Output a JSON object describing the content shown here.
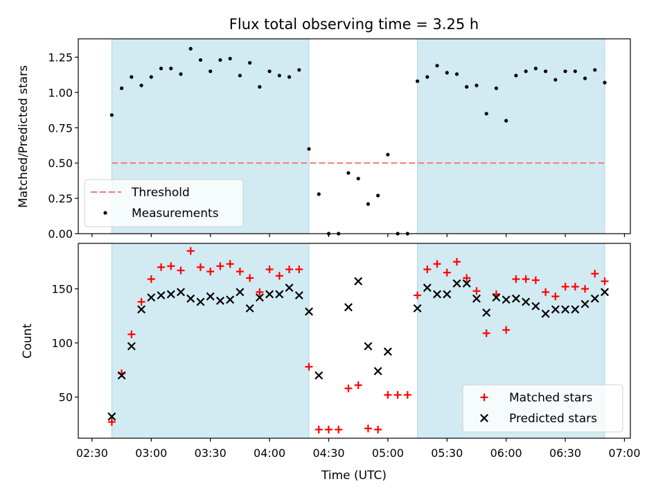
{
  "title": "Flux total observing time = 3.25 h",
  "colors": {
    "shade": "#add8e6",
    "threshold": "#f08080",
    "matched": "#ff0000",
    "predicted": "#000000",
    "measurement": "#000000"
  },
  "chart_data": [
    {
      "type": "scatter",
      "panel": "top",
      "ylabel": "Matched/Predicted stars",
      "xlabel": "",
      "ylim": [
        0,
        1.38
      ],
      "yticks": [
        0.0,
        0.25,
        0.5,
        0.75,
        1.0,
        1.25
      ],
      "ytick_labels": [
        "0.00",
        "0.25",
        "0.50",
        "0.75",
        "1.00",
        "1.25"
      ],
      "xlim_minutes": [
        143,
        423
      ],
      "threshold": 0.5,
      "shaded_intervals": [
        [
          "02:40",
          "04:20"
        ],
        [
          "05:15",
          "06:50"
        ]
      ],
      "legend": {
        "placement": "lower-left",
        "entries": [
          "Threshold",
          "Measurements"
        ]
      },
      "series": [
        {
          "name": "Measurements",
          "marker": "dot",
          "x": [
            "02:40",
            "02:45",
            "02:50",
            "02:55",
            "03:00",
            "03:05",
            "03:10",
            "03:15",
            "03:20",
            "03:25",
            "03:30",
            "03:35",
            "03:40",
            "03:45",
            "03:50",
            "03:55",
            "04:00",
            "04:05",
            "04:10",
            "04:15",
            "04:20",
            "04:25",
            "04:30",
            "04:35",
            "04:40",
            "04:45",
            "04:50",
            "04:55",
            "05:00",
            "05:05",
            "05:10",
            "05:15",
            "05:20",
            "05:25",
            "05:30",
            "05:35",
            "05:40",
            "05:45",
            "05:50",
            "05:55",
            "06:00",
            "06:05",
            "06:10",
            "06:15",
            "06:20",
            "06:25",
            "06:30",
            "06:35",
            "06:40",
            "06:45",
            "06:50"
          ],
          "values": [
            0.84,
            1.03,
            1.11,
            1.05,
            1.11,
            1.17,
            1.17,
            1.13,
            1.31,
            1.23,
            1.15,
            1.23,
            1.24,
            1.12,
            1.21,
            1.04,
            1.15,
            1.12,
            1.11,
            1.16,
            0.6,
            0.28,
            0.0,
            0.0,
            0.43,
            0.39,
            0.21,
            0.27,
            0.56,
            0.0,
            0.0,
            1.08,
            1.11,
            1.19,
            1.14,
            1.13,
            1.04,
            1.05,
            0.85,
            1.03,
            0.8,
            1.12,
            1.15,
            1.17,
            1.15,
            1.09,
            1.15,
            1.15,
            1.1,
            1.16,
            1.07
          ]
        }
      ]
    },
    {
      "type": "scatter",
      "panel": "bottom",
      "ylabel": "Count",
      "xlabel": "Time (UTC)",
      "ylim": [
        12,
        192
      ],
      "yticks": [
        50,
        100,
        150
      ],
      "ytick_labels": [
        "50",
        "100",
        "150"
      ],
      "xticks": [
        "02:30",
        "03:00",
        "03:30",
        "04:00",
        "04:30",
        "05:00",
        "05:30",
        "06:00",
        "06:30",
        "07:00"
      ],
      "xlim_minutes": [
        143,
        423
      ],
      "shaded_intervals": [
        [
          "02:40",
          "04:20"
        ],
        [
          "05:15",
          "06:50"
        ]
      ],
      "legend": {
        "placement": "lower-right",
        "entries": [
          "Matched stars",
          "Predicted stars"
        ]
      },
      "series": [
        {
          "name": "Matched stars",
          "marker": "plus",
          "x": [
            "02:40",
            "02:45",
            "02:50",
            "02:55",
            "03:00",
            "03:05",
            "03:10",
            "03:15",
            "03:20",
            "03:25",
            "03:30",
            "03:35",
            "03:40",
            "03:45",
            "03:50",
            "03:55",
            "04:00",
            "04:05",
            "04:10",
            "04:15",
            "04:20",
            "04:25",
            "04:30",
            "04:35",
            "04:40",
            "04:45",
            "04:50",
            "04:55",
            "05:00",
            "05:05",
            "05:10",
            "05:15",
            "05:20",
            "05:25",
            "05:30",
            "05:35",
            "05:40",
            "05:45",
            "05:50",
            "05:55",
            "06:00",
            "06:05",
            "06:10",
            "06:15",
            "06:20",
            "06:25",
            "06:30",
            "06:35",
            "06:40",
            "06:45",
            "06:50"
          ],
          "values": [
            27,
            72,
            108,
            138,
            159,
            170,
            171,
            167,
            185,
            170,
            166,
            171,
            173,
            166,
            160,
            147,
            168,
            162,
            168,
            168,
            78,
            20,
            20,
            20,
            58,
            61,
            21,
            20,
            52,
            52,
            52,
            144,
            168,
            173,
            165,
            175,
            160,
            148,
            109,
            145,
            112,
            159,
            159,
            158,
            147,
            143,
            152,
            152,
            150,
            164,
            157
          ]
        },
        {
          "name": "Predicted stars",
          "marker": "x",
          "x": [
            "02:40",
            "02:45",
            "02:50",
            "02:55",
            "03:00",
            "03:05",
            "03:10",
            "03:15",
            "03:20",
            "03:25",
            "03:30",
            "03:35",
            "03:40",
            "03:45",
            "03:50",
            "03:55",
            "04:00",
            "04:05",
            "04:10",
            "04:15",
            "04:20",
            "04:25",
            "04:40",
            "04:45",
            "04:50",
            "04:55",
            "05:00",
            "05:15",
            "05:20",
            "05:25",
            "05:30",
            "05:35",
            "05:40",
            "05:45",
            "05:50",
            "05:55",
            "06:00",
            "06:05",
            "06:10",
            "06:15",
            "06:20",
            "06:25",
            "06:30",
            "06:35",
            "06:40",
            "06:45",
            "06:50"
          ],
          "values": [
            32,
            70,
            97,
            131,
            142,
            144,
            145,
            147,
            141,
            138,
            143,
            139,
            140,
            147,
            132,
            142,
            145,
            145,
            151,
            144,
            129,
            70,
            133,
            157,
            97,
            74,
            92,
            132,
            151,
            145,
            145,
            155,
            155,
            141,
            128,
            142,
            140,
            141,
            138,
            134,
            127,
            131,
            131,
            131,
            136,
            141,
            147
          ]
        }
      ]
    }
  ]
}
